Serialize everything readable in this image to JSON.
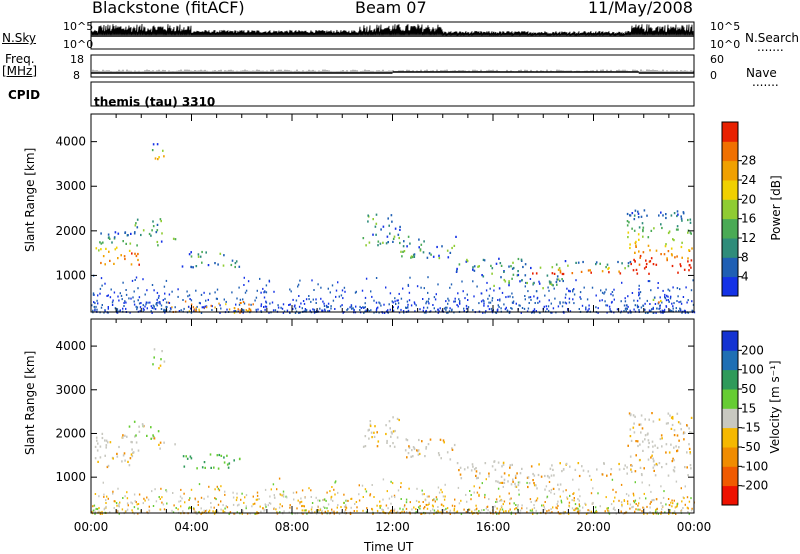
{
  "header": {
    "station": "Blackstone (fitACF)",
    "beam": "Beam 07",
    "date": "11/May/2008"
  },
  "side_labels": {
    "nsky": "N.Sky",
    "freq": "Freq.",
    "mhz": "[MHz]",
    "cpid": "CPID",
    "nsearch": "N.Search",
    "nave": "Nave",
    "dots": "......."
  },
  "small_axes": {
    "nsky_ticks": [
      "10^5",
      "10^0"
    ],
    "nsearch_ticks": [
      "10^5",
      "10^0"
    ],
    "freq_ticks": [
      "18",
      "8"
    ],
    "nave_ticks": [
      "60",
      "0"
    ]
  },
  "cpid_text": "themis (tau) 3310",
  "colors": {
    "power": [
      "#1432e6",
      "#1f5fb4",
      "#2f8c7a",
      "#4aaa55",
      "#8fcc33",
      "#f0d000",
      "#f0a000",
      "#f07000",
      "#e82000"
    ],
    "velocity": [
      "#ee1100",
      "#f05a00",
      "#f08c00",
      "#f5b800",
      "#c8c8c0",
      "#66cc33",
      "#2f9a5a",
      "#1f6fb4",
      "#1433d2"
    ]
  },
  "chart_data": [
    {
      "type": "heatmap",
      "title": "",
      "panel": "power",
      "xlabel": "Time UT",
      "ylabel": "Slant Range [km]",
      "x_ticks": [
        "00:00",
        "04:00",
        "08:00",
        "12:00",
        "16:00",
        "20:00",
        "00:00"
      ],
      "y_ticks": [
        1000,
        2000,
        3000,
        4000
      ],
      "ylim": [
        180,
        4620
      ],
      "xlim_hours": [
        0,
        24
      ],
      "colorbar_label": "Power [dB]",
      "colorbar_ticks": [
        "4",
        "8",
        "12",
        "16",
        "20",
        "24",
        "28"
      ]
    },
    {
      "type": "heatmap",
      "title": "",
      "panel": "velocity",
      "xlabel": "Time UT",
      "ylabel": "Slant Range [km]",
      "x_ticks": [
        "00:00",
        "04:00",
        "08:00",
        "12:00",
        "16:00",
        "20:00",
        "00:00"
      ],
      "y_ticks": [
        1000,
        2000,
        3000,
        4000
      ],
      "ylim": [
        180,
        4620
      ],
      "xlim_hours": [
        0,
        24
      ],
      "colorbar_label": "Velocity [m s⁻¹]",
      "colorbar_ticks": [
        "-200",
        "-100",
        "-50",
        "-15",
        "15",
        "50",
        "100",
        "200"
      ]
    }
  ],
  "xaxis_title": "Time UT"
}
